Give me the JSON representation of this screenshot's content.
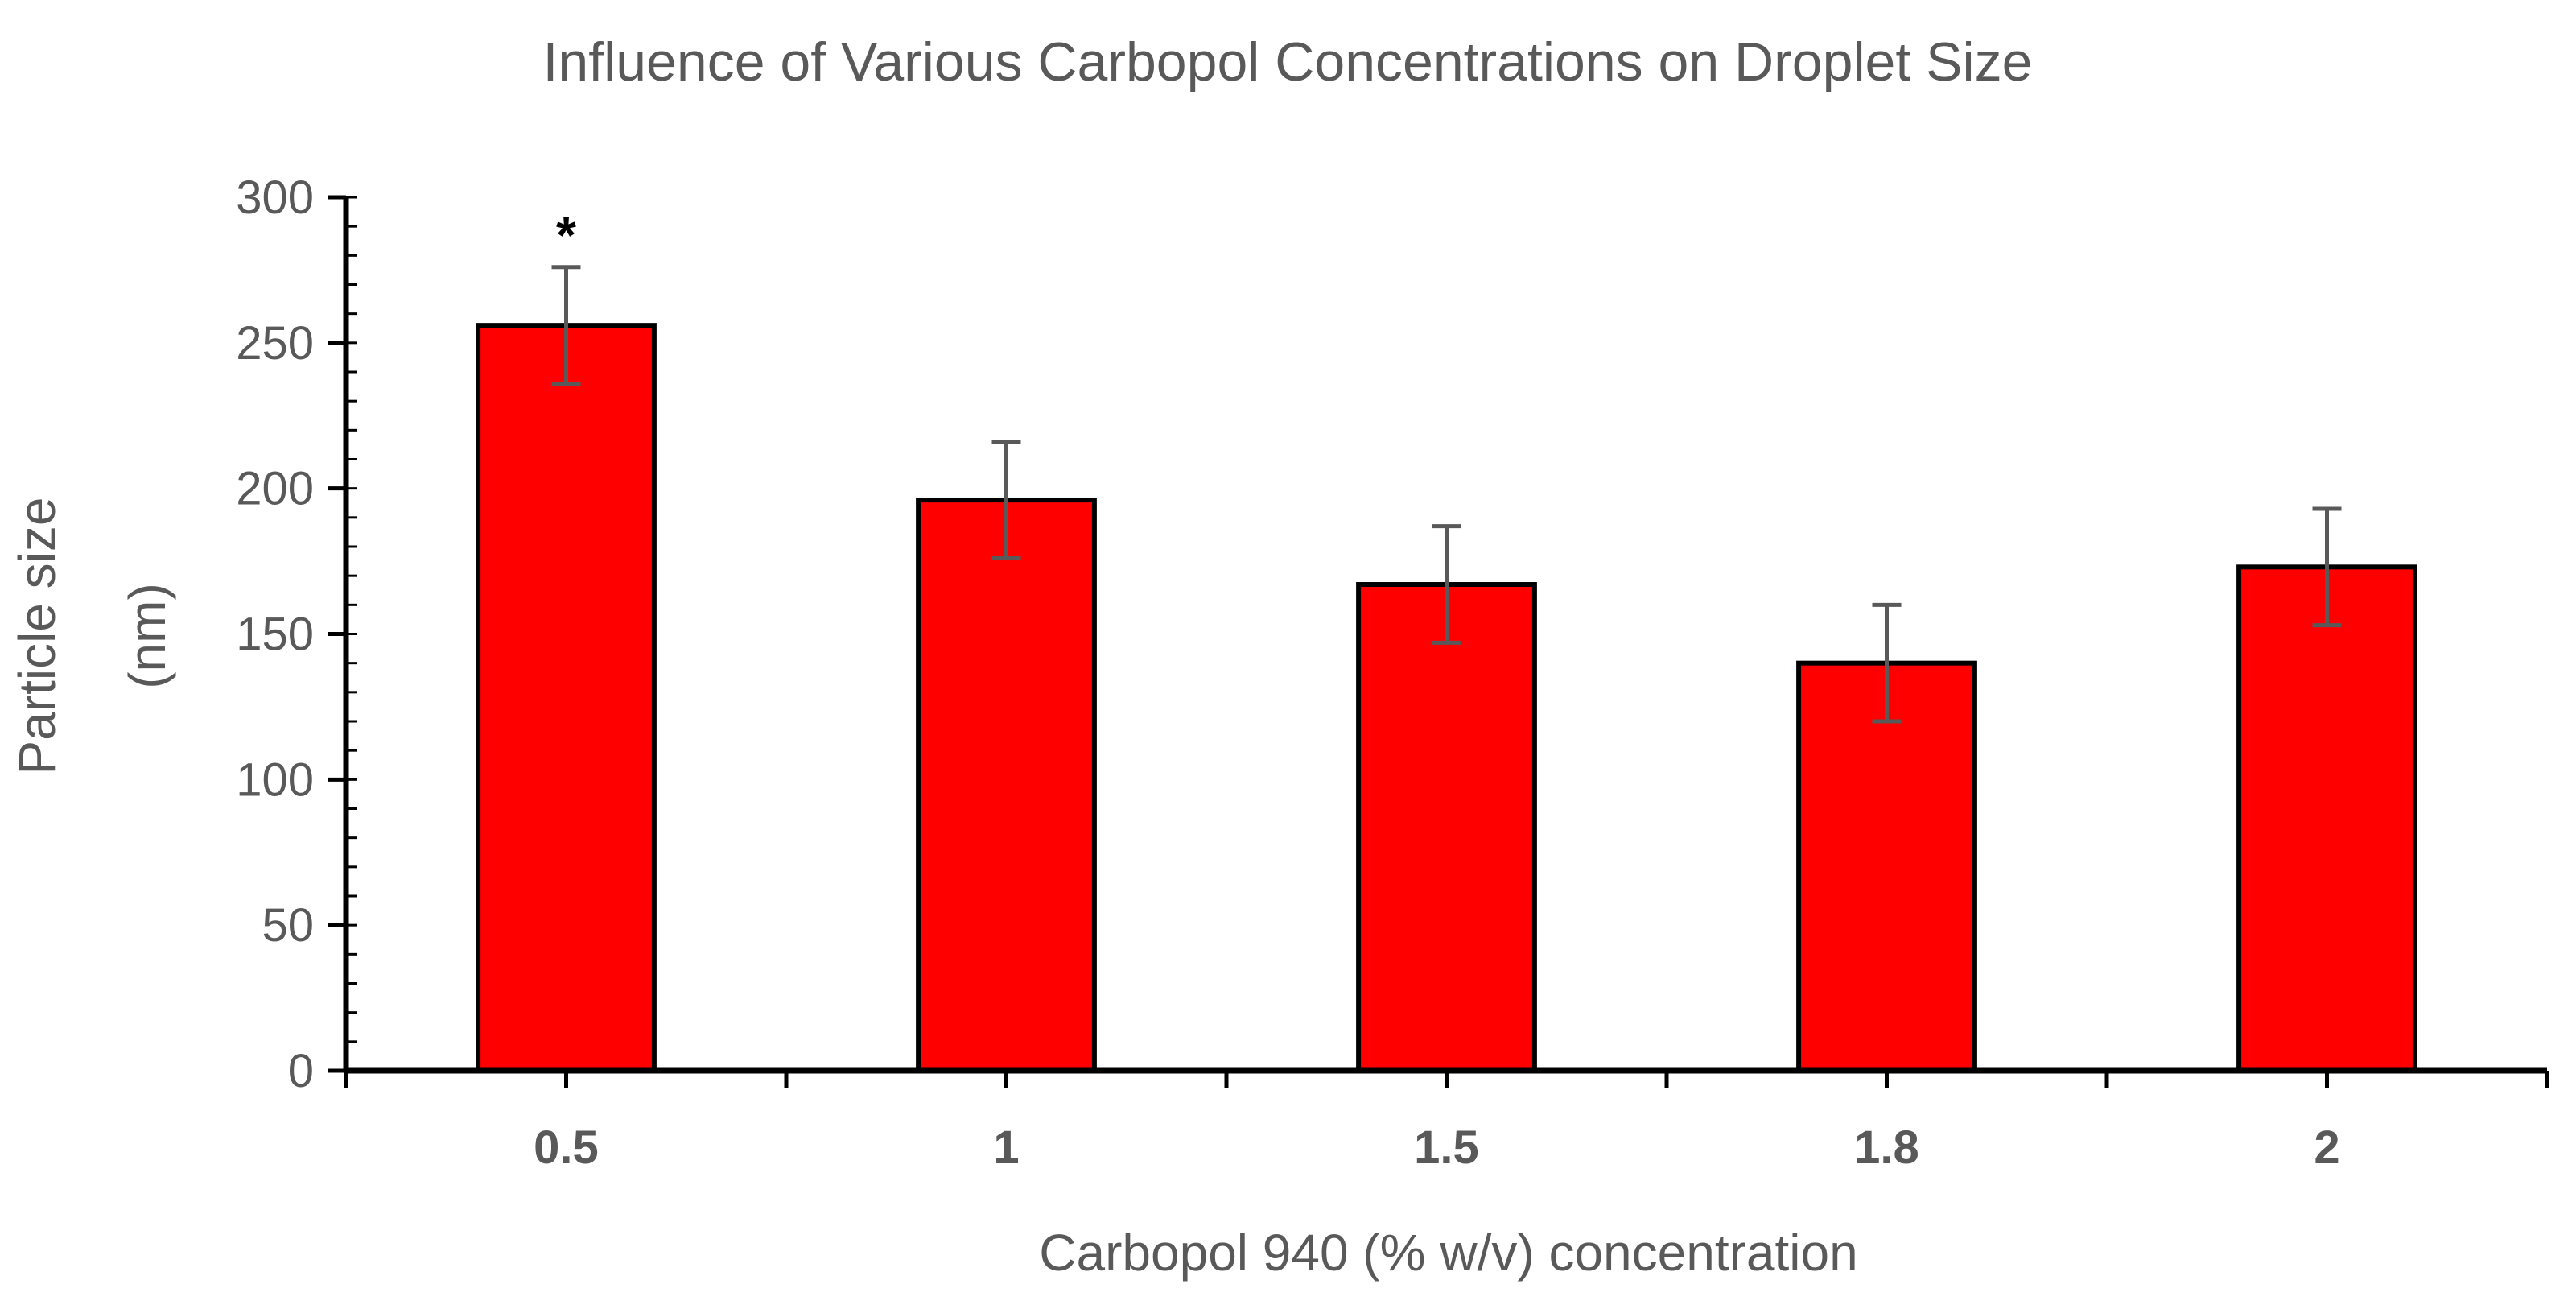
{
  "chart_data": {
    "type": "bar",
    "title": "Influence of Various Carbopol Concentrations on Droplet Size",
    "xlabel": "Carbopol 940 (% w/v) concentration",
    "ylabel_lines": [
      "Particle size",
      "(nm)"
    ],
    "categories": [
      "0.5",
      "1",
      "1.5",
      "1.8",
      "2"
    ],
    "series": [
      {
        "values": [
          256,
          196,
          167,
          140,
          173
        ],
        "errors": [
          20,
          20,
          20,
          20,
          20
        ],
        "color": "#ff0000",
        "edge_color": "#000000"
      }
    ],
    "ylim": [
      0,
      300
    ],
    "yticks": [
      "0",
      "50",
      "100",
      "150",
      "200",
      "250",
      "300"
    ],
    "annotations": [
      {
        "category": "0.5",
        "text": "*"
      }
    ],
    "grid": false,
    "legend": "none"
  }
}
